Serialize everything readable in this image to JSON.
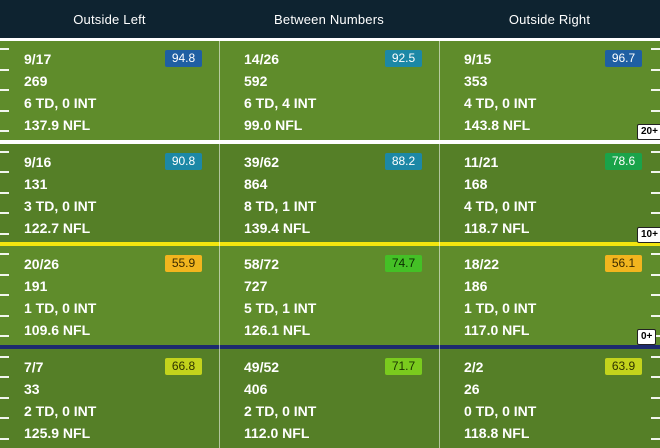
{
  "columns": [
    "Outside Left",
    "Between Numbers",
    "Outside Right"
  ],
  "yard_markers": [
    "20+",
    "10+",
    "0+"
  ],
  "rows": [
    {
      "cells": [
        {
          "comp": "9/17",
          "yards": "269",
          "td_int": "6 TD, 0 INT",
          "rating": "137.9 NFL",
          "grade": "94.8",
          "grade_color": "#1f5fa3",
          "grade_text": "#ffffff"
        },
        {
          "comp": "14/26",
          "yards": "592",
          "td_int": "6 TD, 4 INT",
          "rating": "99.0 NFL",
          "grade": "92.5",
          "grade_color": "#1c88a6",
          "grade_text": "#ffffff"
        },
        {
          "comp": "9/15",
          "yards": "353",
          "td_int": "4 TD, 0 INT",
          "rating": "143.8 NFL",
          "grade": "96.7",
          "grade_color": "#1f5fa3",
          "grade_text": "#ffffff"
        }
      ]
    },
    {
      "cells": [
        {
          "comp": "9/16",
          "yards": "131",
          "td_int": "3 TD, 0 INT",
          "rating": "122.7 NFL",
          "grade": "90.8",
          "grade_color": "#1c88a6",
          "grade_text": "#ffffff"
        },
        {
          "comp": "39/62",
          "yards": "864",
          "td_int": "8 TD, 1 INT",
          "rating": "139.4 NFL",
          "grade": "88.2",
          "grade_color": "#1c88a6",
          "grade_text": "#ffffff"
        },
        {
          "comp": "11/21",
          "yards": "168",
          "td_int": "4 TD, 0 INT",
          "rating": "118.7 NFL",
          "grade": "78.6",
          "grade_color": "#1aa34a",
          "grade_text": "#ffffff"
        }
      ]
    },
    {
      "cells": [
        {
          "comp": "20/26",
          "yards": "191",
          "td_int": "1 TD, 0 INT",
          "rating": "109.6 NFL",
          "grade": "55.9",
          "grade_color": "#f2b51e",
          "grade_text": "#3a2a00"
        },
        {
          "comp": "58/72",
          "yards": "727",
          "td_int": "5 TD, 1 INT",
          "rating": "126.1 NFL",
          "grade": "74.7",
          "grade_color": "#44c026",
          "grade_text": "#0b2a00"
        },
        {
          "comp": "18/22",
          "yards": "186",
          "td_int": "1 TD, 0 INT",
          "rating": "117.0 NFL",
          "grade": "56.1",
          "grade_color": "#f2b51e",
          "grade_text": "#3a2a00"
        }
      ]
    },
    {
      "cells": [
        {
          "comp": "7/7",
          "yards": "33",
          "td_int": "2 TD, 0 INT",
          "rating": "125.9 NFL",
          "grade": "66.8",
          "grade_color": "#c3d31c",
          "grade_text": "#2e3300"
        },
        {
          "comp": "49/52",
          "yards": "406",
          "td_int": "2 TD, 0 INT",
          "rating": "112.0 NFL",
          "grade": "71.7",
          "grade_color": "#7acb1e",
          "grade_text": "#1a3300"
        },
        {
          "comp": "2/2",
          "yards": "26",
          "td_int": "0 TD, 0 INT",
          "rating": "118.8 NFL",
          "grade": "63.9",
          "grade_color": "#c3d31c",
          "grade_text": "#2e3300"
        }
      ]
    }
  ]
}
